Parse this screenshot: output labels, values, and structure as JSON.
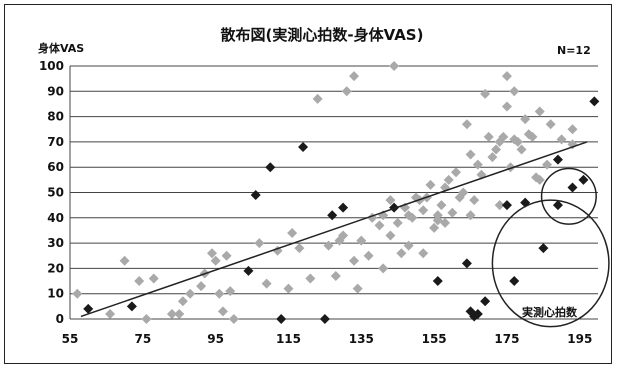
{
  "chart_data": {
    "type": "scatter",
    "title": "散布図(実測心拍数-身体VAS)",
    "ylabel": "身体VAS",
    "xlabel": "実測心拍数",
    "annotation": "N=12",
    "xlim": [
      55,
      200
    ],
    "ylim": [
      0,
      100
    ],
    "xticks": [
      "55",
      "75",
      "95",
      "115",
      "135",
      "155",
      "175",
      "195"
    ],
    "yticks": [
      "0",
      "10",
      "20",
      "30",
      "40",
      "50",
      "60",
      "70",
      "80",
      "90",
      "100"
    ],
    "grid": "horizontal",
    "colors": {
      "gray": "#a9a9a9",
      "black": "#1a1a1a",
      "line": "#222222"
    },
    "series": [
      {
        "color": "gray",
        "points": [
          [
            57,
            10
          ],
          [
            66,
            2
          ],
          [
            70,
            23
          ],
          [
            74,
            15
          ],
          [
            76,
            0
          ],
          [
            78,
            16
          ],
          [
            83,
            2
          ],
          [
            85,
            2
          ],
          [
            86,
            7
          ],
          [
            88,
            10
          ],
          [
            91,
            13
          ],
          [
            92,
            18
          ],
          [
            94,
            26
          ],
          [
            95,
            23
          ],
          [
            96,
            10
          ],
          [
            97,
            3
          ],
          [
            98,
            25
          ],
          [
            99,
            11
          ],
          [
            100,
            0
          ],
          [
            107,
            30
          ],
          [
            109,
            14
          ],
          [
            112,
            27
          ],
          [
            115,
            12
          ],
          [
            116,
            34
          ],
          [
            118,
            28
          ],
          [
            121,
            16
          ],
          [
            123,
            87
          ],
          [
            126,
            29
          ],
          [
            128,
            17
          ],
          [
            129,
            31
          ],
          [
            130,
            33
          ],
          [
            131,
            90
          ],
          [
            133,
            96
          ],
          [
            133,
            23
          ],
          [
            134,
            12
          ],
          [
            135,
            31
          ],
          [
            137,
            25
          ],
          [
            138,
            40
          ],
          [
            140,
            37
          ],
          [
            141,
            41
          ],
          [
            141,
            20
          ],
          [
            143,
            33
          ],
          [
            143,
            47
          ],
          [
            144,
            100
          ],
          [
            145,
            38
          ],
          [
            146,
            26
          ],
          [
            147,
            44
          ],
          [
            148,
            41
          ],
          [
            148,
            29
          ],
          [
            149,
            40
          ],
          [
            150,
            48
          ],
          [
            151,
            47
          ],
          [
            152,
            26
          ],
          [
            152,
            43
          ],
          [
            153,
            48
          ],
          [
            154,
            53
          ],
          [
            155,
            36
          ],
          [
            156,
            39
          ],
          [
            156,
            41
          ],
          [
            157,
            45
          ],
          [
            158,
            38
          ],
          [
            158,
            52
          ],
          [
            159,
            55
          ],
          [
            160,
            42
          ],
          [
            161,
            58
          ],
          [
            162,
            48
          ],
          [
            163,
            50
          ],
          [
            164,
            77
          ],
          [
            165,
            65
          ],
          [
            165,
            41
          ],
          [
            166,
            47
          ],
          [
            167,
            61
          ],
          [
            168,
            57
          ],
          [
            169,
            89
          ],
          [
            170,
            72
          ],
          [
            171,
            64
          ],
          [
            172,
            67
          ],
          [
            173,
            70
          ],
          [
            173,
            45
          ],
          [
            174,
            72
          ],
          [
            175,
            84
          ],
          [
            175,
            96
          ],
          [
            176,
            60
          ],
          [
            177,
            71
          ],
          [
            177,
            90
          ],
          [
            178,
            70
          ],
          [
            179,
            67
          ],
          [
            180,
            79
          ],
          [
            181,
            73
          ],
          [
            182,
            72
          ],
          [
            183,
            56
          ],
          [
            184,
            55
          ],
          [
            184,
            82
          ],
          [
            186,
            61
          ],
          [
            187,
            77
          ],
          [
            190,
            71
          ],
          [
            193,
            69
          ],
          [
            193,
            75
          ]
        ]
      },
      {
        "color": "black",
        "points": [
          [
            60,
            4
          ],
          [
            72,
            5
          ],
          [
            104,
            19
          ],
          [
            106,
            49
          ],
          [
            110,
            60
          ],
          [
            113,
            0
          ],
          [
            119,
            68
          ],
          [
            125,
            0
          ],
          [
            127,
            41
          ],
          [
            130,
            44
          ],
          [
            144,
            44
          ],
          [
            156,
            15
          ],
          [
            164,
            22
          ],
          [
            165,
            3
          ],
          [
            166,
            1
          ],
          [
            167,
            2
          ],
          [
            169,
            7
          ],
          [
            175,
            45
          ],
          [
            177,
            15
          ],
          [
            180,
            46
          ],
          [
            185,
            28
          ],
          [
            189,
            45
          ],
          [
            189,
            63
          ],
          [
            193,
            52
          ],
          [
            196,
            55
          ],
          [
            199,
            86
          ]
        ]
      }
    ],
    "trendline": [
      [
        58,
        1
      ],
      [
        197,
        70
      ]
    ],
    "ellipses": [
      {
        "cx": 187,
        "cy": 22,
        "rx": 16,
        "ry": 25
      },
      {
        "cx": 192,
        "cy": 48.5,
        "rx": 7.5,
        "ry": 11
      }
    ]
  }
}
